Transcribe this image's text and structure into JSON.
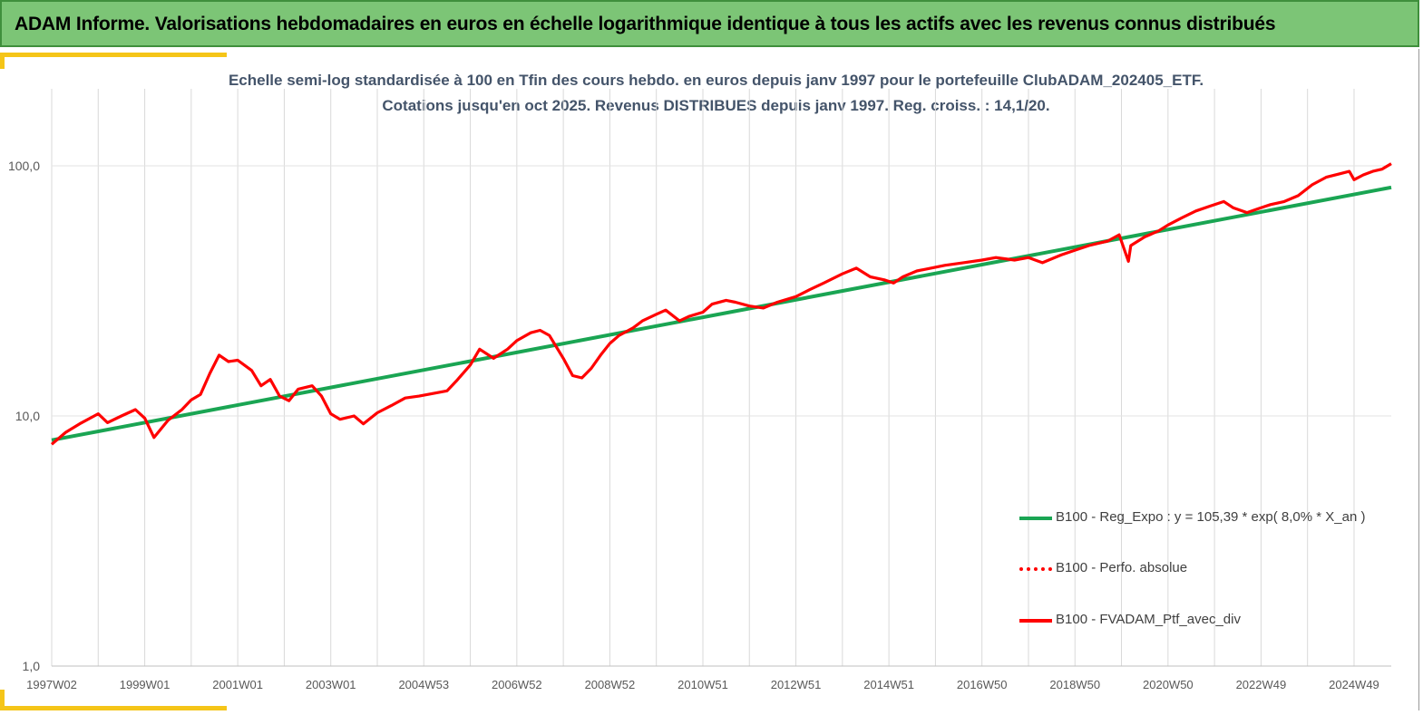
{
  "header": {
    "banner_title": "ADAM Informe. Valorisations hebdomadaires en euros en échelle logarithmique identique à tous les actifs avec les revenus connus distribués"
  },
  "colors": {
    "banner_bg": "#7cc576",
    "accent_corner": "#f5c518",
    "regression": "#1aa553",
    "portfolio": "#ff0000",
    "title_text": "#44546a"
  },
  "chart_data": {
    "type": "line",
    "title_line1": "Echelle semi-log standardisée  à 100 en Tfin des cours hebdo.  en euros depuis janv 1997 pour le portefeuille ClubADAM_202405_ETF.",
    "title_line2": "Cotations  jusqu'en oct 2025. Revenus DISTRIBUES depuis janv 1997. Reg. croiss. : 14,1/20.",
    "y_scale": "log",
    "ylim": [
      1,
      100
    ],
    "y_ticks": [
      "1,0",
      "10,0",
      "100,0"
    ],
    "x_range": [
      1997.0,
      2025.8
    ],
    "x_ticks": [
      "1997W02",
      "1999W01",
      "2001W01",
      "2003W01",
      "2004W53",
      "2006W52",
      "2008W52",
      "2010W51",
      "2012W51",
      "2014W51",
      "2016W50",
      "2018W50",
      "2020W50",
      "2022W49",
      "2024W49"
    ],
    "grid": "vertical",
    "legend_placement": "bottom-right",
    "series": [
      {
        "name": "B100 - Reg_Expo : y = 105,39 * exp( 8,0% *  X_an )",
        "style": "solid",
        "x": [
          1997.0,
          2025.8
        ],
        "y": [
          8.0,
          82.0
        ]
      },
      {
        "name": "B100 - Perfo. absolue",
        "style": "dotted",
        "x": [],
        "y": []
      },
      {
        "name": "B100 - FVADAM_Ptf_avec_div",
        "style": "solid",
        "x": [
          1997.0,
          1997.3,
          1997.6,
          1998.0,
          1998.2,
          1998.5,
          1998.8,
          1999.0,
          1999.2,
          1999.5,
          1999.8,
          2000.0,
          2000.2,
          2000.4,
          2000.6,
          2000.8,
          2001.0,
          2001.3,
          2001.5,
          2001.7,
          2001.9,
          2002.1,
          2002.3,
          2002.6,
          2002.8,
          2003.0,
          2003.2,
          2003.5,
          2003.7,
          2004.0,
          2004.3,
          2004.6,
          2004.9,
          2005.2,
          2005.5,
          2005.7,
          2006.0,
          2006.2,
          2006.5,
          2006.8,
          2007.0,
          2007.3,
          2007.5,
          2007.7,
          2008.0,
          2008.2,
          2008.4,
          2008.6,
          2008.8,
          2009.0,
          2009.2,
          2009.5,
          2009.7,
          2010.0,
          2010.2,
          2010.5,
          2010.7,
          2011.0,
          2011.2,
          2011.5,
          2011.7,
          2012.0,
          2012.3,
          2012.6,
          2013.0,
          2013.3,
          2013.6,
          2014.0,
          2014.3,
          2014.6,
          2014.9,
          2015.1,
          2015.3,
          2015.6,
          2015.9,
          2016.2,
          2016.6,
          2017.0,
          2017.3,
          2017.7,
          2018.0,
          2018.3,
          2018.7,
          2019.0,
          2019.3,
          2019.7,
          2019.95,
          2020.15,
          2020.2,
          2020.5,
          2020.8,
          2021.0,
          2021.3,
          2021.6,
          2021.9,
          2022.2,
          2022.4,
          2022.7,
          2022.9,
          2023.2,
          2023.5,
          2023.8,
          2024.1,
          2024.4,
          2024.7,
          2024.9,
          2025.0,
          2025.2,
          2025.4,
          2025.6,
          2025.8
        ],
        "y": [
          7.7,
          8.6,
          9.3,
          10.2,
          9.4,
          10.0,
          10.6,
          9.8,
          8.2,
          9.6,
          10.6,
          11.6,
          12.2,
          14.8,
          17.5,
          16.5,
          16.7,
          15.2,
          13.2,
          14.0,
          12.0,
          11.5,
          12.8,
          13.2,
          12.0,
          10.2,
          9.7,
          10.0,
          9.3,
          10.3,
          11.0,
          11.8,
          12.0,
          12.3,
          12.6,
          13.8,
          16.0,
          18.5,
          17.0,
          18.5,
          20.0,
          21.5,
          22.0,
          21.0,
          17.0,
          14.5,
          14.2,
          15.5,
          17.5,
          19.5,
          21.0,
          22.5,
          24.0,
          25.5,
          26.5,
          24.0,
          25.0,
          26.0,
          28.0,
          29.0,
          28.5,
          27.5,
          27.0,
          28.5,
          30.0,
          32.0,
          34.0,
          37.0,
          39.0,
          36.0,
          35.0,
          34.0,
          36.0,
          38.0,
          39.0,
          40.0,
          41.0,
          42.0,
          43.0,
          42.0,
          43.0,
          41.0,
          44.0,
          46.0,
          48.0,
          50.0,
          53.0,
          41.5,
          48.0,
          52.0,
          55.0,
          58.0,
          62.0,
          66.0,
          69.0,
          72.0,
          68.0,
          65.0,
          67.0,
          70.0,
          72.0,
          76.0,
          84.0,
          90.0,
          93.0,
          95.0,
          88.0,
          92.0,
          95.0,
          97.0,
          102.0
        ]
      }
    ]
  }
}
